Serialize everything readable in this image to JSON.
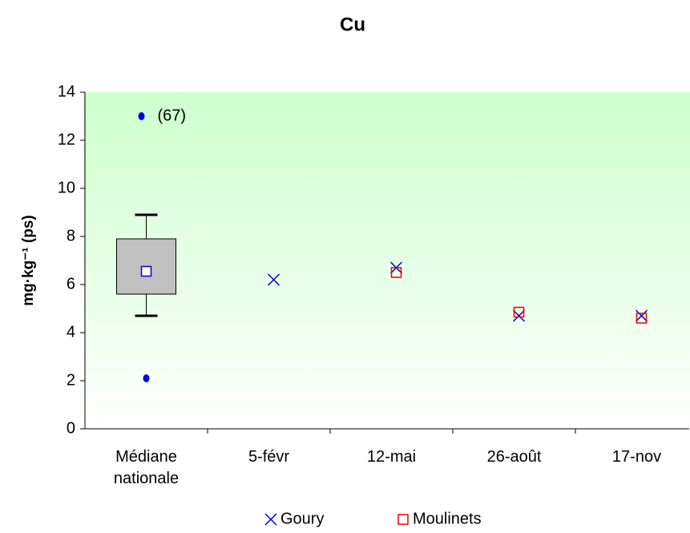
{
  "chart_data": {
    "type": "box",
    "title": "Cu",
    "y_label": "mg·kg⁻¹ (ps)",
    "categories": [
      "Médiane nationale",
      "5-févr",
      "12-mai",
      "26-août",
      "17-nov"
    ],
    "ylim": [
      0,
      14
    ],
    "yticks": [
      0,
      2,
      4,
      6,
      8,
      10,
      12,
      14
    ],
    "box": {
      "whislo": 4.7,
      "q1": 5.6,
      "mean": 6.55,
      "q3": 7.9,
      "whishi": 8.9,
      "fliers": [
        2.1,
        13.0
      ],
      "flier_label": "(67)",
      "color": "#c0c0c0",
      "mean_color": "#0000cc",
      "flier_color": "#0000ee"
    },
    "series": [
      {
        "name": "Goury",
        "color": "#0000cc",
        "marker": "x",
        "values": [
          null,
          6.2,
          6.7,
          4.7,
          4.7
        ]
      },
      {
        "name": "Moulinets",
        "color": "#ee0000",
        "marker": "square",
        "values": [
          null,
          null,
          6.5,
          4.85,
          4.6
        ]
      }
    ]
  }
}
